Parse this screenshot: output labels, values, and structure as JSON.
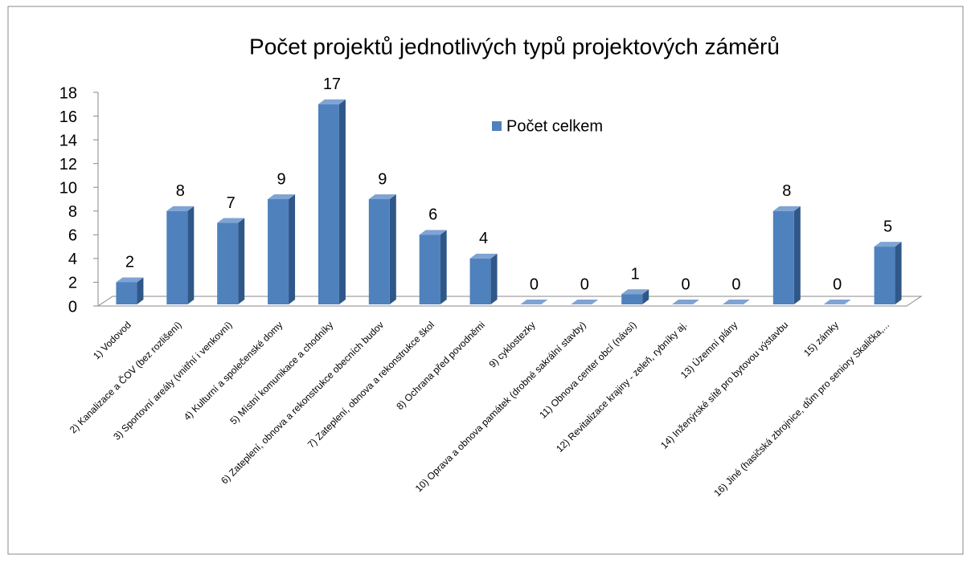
{
  "chart_data": {
    "type": "bar3d",
    "title": "Počet projektů jednotlivých typů projektových záměrů",
    "categories": [
      "1)  Vodovod",
      "2)  Kanalizace a ČOV (bez rozlišení)",
      "3)  Sportovní areály (vnitřní i venkovní)",
      "4)  Kulturní a společenské domy",
      "5)  Místní komunikace a chodníky",
      "6)  Zateplení, obnova a rekonstrukce obecních budov",
      "7)  Zateplení, obnova a rekonstrukce škol",
      "8)  Ochrana před povodněmi",
      "9)  cyklostezky",
      "10) Oprava a obnova památek (drobné sakrální stavby)",
      "11)  Obnova center obcí (návsí)",
      "12) Revitalizace krajiny - zeleň, rybníky aj.",
      "13) Územní plány",
      "14) Inženýrské sítě pro bytovou výstavbu",
      "15) zámky",
      "16) Jiné (hasičská zbrojnice, dům pro seniory Skalička,..."
    ],
    "series": [
      {
        "name": "Počet celkem",
        "color": "#4f81bd",
        "values": [
          2,
          8,
          7,
          9,
          17,
          9,
          6,
          4,
          0,
          0,
          1,
          0,
          0,
          8,
          0,
          5
        ]
      }
    ],
    "ylim": [
      0,
      18
    ],
    "yticks": [
      0,
      2,
      4,
      6,
      8,
      10,
      12,
      14,
      16,
      18
    ],
    "legend": "top-center"
  }
}
